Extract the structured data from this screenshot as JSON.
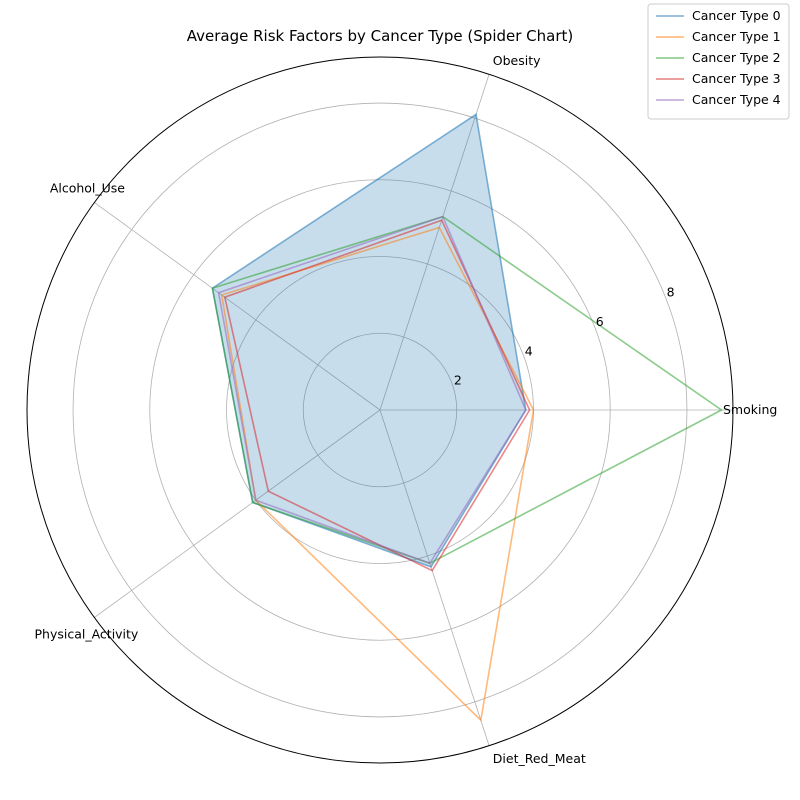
{
  "chart_data": {
    "type": "radar",
    "title": "Average Risk Factors by Cancer Type (Spider Chart)",
    "axes": [
      "Smoking",
      "Obesity",
      "Alcohol_Use",
      "Physical_Activity",
      "Diet_Red_Meat"
    ],
    "rlim": [
      0,
      9.2
    ],
    "rticks": [
      2,
      4,
      6,
      8
    ],
    "grid": true,
    "legend_position": "top-right",
    "filled_series": "Cancer Type 0",
    "series": [
      {
        "name": "Cancer Type 0",
        "color": "#1f77b4",
        "values": [
          3.8,
          8.1,
          5.4,
          4.1,
          4.3
        ]
      },
      {
        "name": "Cancer Type 1",
        "color": "#ff7f0e",
        "values": [
          4.0,
          5.0,
          5.1,
          4.0,
          8.5
        ]
      },
      {
        "name": "Cancer Type 2",
        "color": "#2ca02c",
        "values": [
          8.9,
          5.3,
          5.4,
          4.1,
          4.2
        ]
      },
      {
        "name": "Cancer Type 3",
        "color": "#d62728",
        "values": [
          3.9,
          5.2,
          5.0,
          3.6,
          4.4
        ]
      },
      {
        "name": "Cancer Type 4",
        "color": "#9467bd",
        "values": [
          3.8,
          5.3,
          5.2,
          4.0,
          4.2
        ]
      }
    ]
  }
}
